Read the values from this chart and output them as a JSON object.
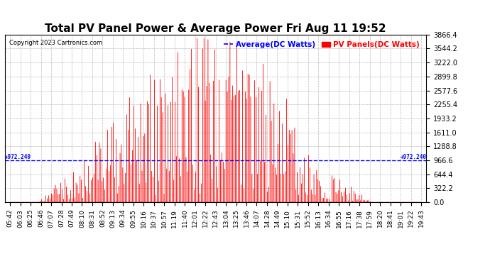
{
  "title": "Total PV Panel Power & Average Power Fri Aug 11 19:52",
  "copyright": "Copyright 2023 Cartronics.com",
  "legend_avg": "Average(DC Watts)",
  "legend_pv": "PV Panels(DC Watts)",
  "ymin": 0.0,
  "ymax": 3866.4,
  "ytick_step": 322.2,
  "average_line": 972.24,
  "avg_label_left": "+972.240",
  "avg_label_right": "+972.240",
  "fill_color": "#FF0000",
  "line_color": "#FF0000",
  "avg_color": "#0000FF",
  "background_color": "#FFFFFF",
  "grid_color": "#AAAAAA",
  "title_fontsize": 11,
  "tick_fontsize": 7,
  "x_tick_labels": [
    "05:42",
    "06:03",
    "06:25",
    "06:46",
    "07:07",
    "07:28",
    "07:49",
    "08:10",
    "08:31",
    "08:52",
    "09:13",
    "09:34",
    "09:55",
    "10:16",
    "10:37",
    "10:57",
    "11:19",
    "11:40",
    "12:01",
    "12:22",
    "12:43",
    "13:04",
    "13:25",
    "13:46",
    "14:07",
    "14:28",
    "14:49",
    "15:10",
    "15:31",
    "15:52",
    "16:13",
    "16:34",
    "16:55",
    "17:16",
    "17:38",
    "17:59",
    "18:20",
    "18:41",
    "19:01",
    "19:22",
    "19:43"
  ]
}
